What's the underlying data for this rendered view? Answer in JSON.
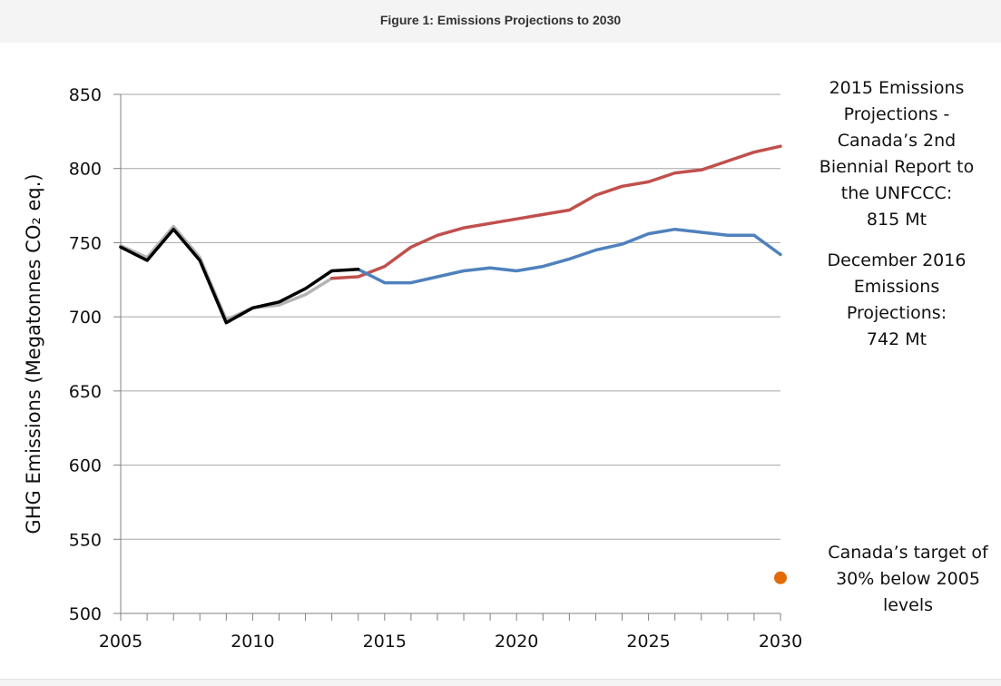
{
  "figure_title": "Figure 1: Emissions Projections to 2030",
  "annotations": {
    "proj_2015": "2015 Emissions\nProjections -\nCanada’s 2nd\nBiennial Report to\nthe UNFCCC:\n815 Mt",
    "proj_2016": "December 2016\nEmissions\nProjections:\n742 Mt",
    "target": "Canada’s target of\n30% below 2005\nlevels"
  },
  "colors": {
    "historical": "#000000",
    "historical_2015": "#b4b4b4",
    "projection_2015": "#c0504d",
    "projection_2016": "#4f81bd",
    "target": "#e36c09",
    "grid": "#a6a6a6"
  },
  "chart_data": {
    "type": "line",
    "title": "",
    "xlabel": "",
    "ylabel": "GHG  Emissions (Megatonnes CO₂ eq.)",
    "xlim": [
      2005,
      2030
    ],
    "ylim": [
      500,
      850
    ],
    "x_ticks": [
      2005,
      2010,
      2015,
      2020,
      2025,
      2030
    ],
    "y_ticks": [
      500,
      550,
      600,
      650,
      700,
      750,
      800,
      850
    ],
    "grid": "horizontal",
    "series": [
      {
        "key": "historical_2015",
        "x": [
          2005,
          2006,
          2007,
          2008,
          2009,
          2010,
          2011,
          2012,
          2013
        ],
        "values": [
          748,
          740,
          761,
          740,
          698,
          706,
          708,
          715,
          726
        ]
      },
      {
        "key": "projection_2015",
        "x": [
          2013,
          2014,
          2015,
          2016,
          2017,
          2018,
          2019,
          2020,
          2021,
          2022,
          2023,
          2024,
          2025,
          2026,
          2027,
          2028,
          2029,
          2030
        ],
        "values": [
          726,
          727,
          734,
          747,
          755,
          760,
          763,
          766,
          769,
          772,
          782,
          788,
          791,
          797,
          799,
          805,
          811,
          815
        ]
      },
      {
        "key": "projection_2016",
        "x": [
          2014,
          2015,
          2016,
          2017,
          2018,
          2019,
          2020,
          2021,
          2022,
          2023,
          2024,
          2025,
          2026,
          2027,
          2028,
          2029,
          2030
        ],
        "values": [
          732,
          723,
          723,
          727,
          731,
          733,
          731,
          734,
          739,
          745,
          749,
          756,
          759,
          757,
          755,
          755,
          742
        ]
      },
      {
        "key": "historical",
        "x": [
          2005,
          2006,
          2007,
          2008,
          2009,
          2010,
          2011,
          2012,
          2013,
          2014
        ],
        "values": [
          747,
          738,
          759,
          738,
          696,
          706,
          710,
          719,
          731,
          732
        ]
      }
    ],
    "target_point": {
      "x": 2030,
      "value": 524
    }
  }
}
